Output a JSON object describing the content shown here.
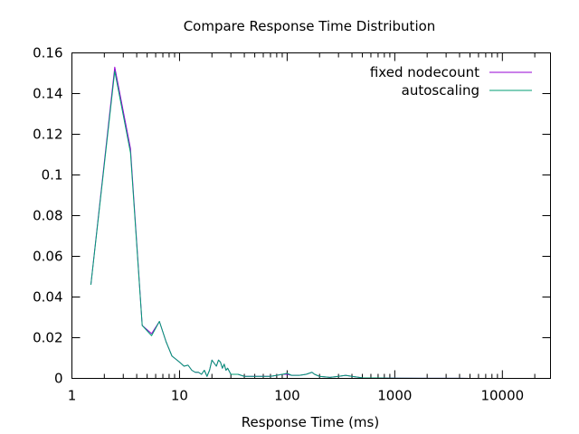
{
  "chart_data": {
    "type": "line",
    "title": "Compare Response Time Distribution",
    "xlabel": "Response Time (ms)",
    "ylabel": "",
    "x_scale": "log",
    "xlim": [
      1,
      28000
    ],
    "ylim": [
      0,
      0.16
    ],
    "x_ticks": [
      1,
      10,
      100,
      1000,
      10000
    ],
    "x_tick_labels": [
      "1",
      "10",
      "100",
      "1000",
      "10000"
    ],
    "y_ticks": [
      0,
      0.02,
      0.04,
      0.06,
      0.08,
      0.1,
      0.12,
      0.14,
      0.16
    ],
    "y_tick_labels": [
      "0",
      "0.02",
      "0.04",
      "0.06",
      "0.08",
      "0.1",
      "0.12",
      "0.14",
      "0.16"
    ],
    "grid": false,
    "legend_position": "top-right",
    "series": [
      {
        "name": "fixed nodecount",
        "color": "#9400d3",
        "points": [
          [
            1.5,
            0.046
          ],
          [
            2.5,
            0.153
          ],
          [
            3.5,
            0.113
          ],
          [
            4.5,
            0.026
          ],
          [
            5.5,
            0.022
          ],
          [
            6.5,
            0.028
          ],
          [
            7.5,
            0.018
          ],
          [
            8.5,
            0.011
          ],
          [
            10,
            0.008
          ],
          [
            11,
            0.006
          ],
          [
            12,
            0.0065
          ],
          [
            13,
            0.004
          ],
          [
            14,
            0.003
          ],
          [
            15,
            0.003
          ],
          [
            16,
            0.002
          ],
          [
            17,
            0.004
          ],
          [
            18,
            0.001
          ],
          [
            19,
            0.004
          ],
          [
            20,
            0.009
          ],
          [
            22,
            0.006
          ],
          [
            23,
            0.009
          ],
          [
            24,
            0.008
          ],
          [
            25,
            0.005
          ],
          [
            26,
            0.007
          ],
          [
            27,
            0.004
          ],
          [
            28,
            0.005
          ],
          [
            30,
            0.002
          ],
          [
            35,
            0.002
          ],
          [
            40,
            0.001
          ],
          [
            50,
            0.001
          ],
          [
            60,
            0.001
          ],
          [
            70,
            0.001
          ],
          [
            80,
            0.0015
          ],
          [
            90,
            0.002
          ],
          [
            100,
            0.002
          ],
          [
            110,
            0.0015
          ],
          [
            130,
            0.0015
          ],
          [
            150,
            0.002
          ],
          [
            170,
            0.003
          ],
          [
            180,
            0.002
          ],
          [
            200,
            0.001
          ],
          [
            250,
            0.0005
          ],
          [
            300,
            0.001
          ],
          [
            350,
            0.0015
          ],
          [
            400,
            0.001
          ],
          [
            500,
            0.0003
          ],
          [
            700,
            0.0002
          ],
          [
            1000,
            0.0001
          ],
          [
            2000,
            5e-05
          ],
          [
            5000,
            2e-05
          ],
          [
            10000,
            1e-05
          ],
          [
            18000,
            1e-05
          ]
        ]
      },
      {
        "name": "autoscaling",
        "color": "#009e73",
        "points": [
          [
            1.5,
            0.046
          ],
          [
            2.5,
            0.151
          ],
          [
            3.5,
            0.111
          ],
          [
            4.5,
            0.026
          ],
          [
            5.5,
            0.021
          ],
          [
            6.5,
            0.028
          ],
          [
            7.5,
            0.018
          ],
          [
            8.5,
            0.011
          ],
          [
            10,
            0.008
          ],
          [
            11,
            0.006
          ],
          [
            12,
            0.0065
          ],
          [
            13,
            0.004
          ],
          [
            14,
            0.003
          ],
          [
            15,
            0.003
          ],
          [
            16,
            0.002
          ],
          [
            17,
            0.004
          ],
          [
            18,
            0.001
          ],
          [
            19,
            0.004
          ],
          [
            20,
            0.009
          ],
          [
            22,
            0.006
          ],
          [
            23,
            0.009
          ],
          [
            24,
            0.008
          ],
          [
            25,
            0.005
          ],
          [
            26,
            0.007
          ],
          [
            27,
            0.004
          ],
          [
            28,
            0.005
          ],
          [
            30,
            0.002
          ],
          [
            35,
            0.002
          ],
          [
            40,
            0.001
          ],
          [
            50,
            0.001
          ],
          [
            60,
            0.001
          ],
          [
            70,
            0.001
          ],
          [
            80,
            0.0015
          ],
          [
            90,
            0.002
          ],
          [
            100,
            0.0025
          ],
          [
            110,
            0.0015
          ],
          [
            130,
            0.0015
          ],
          [
            150,
            0.002
          ],
          [
            170,
            0.003
          ],
          [
            180,
            0.002
          ],
          [
            200,
            0.001
          ],
          [
            250,
            0.0005
          ],
          [
            300,
            0.001
          ],
          [
            350,
            0.0015
          ],
          [
            400,
            0.001
          ],
          [
            500,
            0.0003
          ],
          [
            700,
            0.0002
          ],
          [
            1000,
            0.0001
          ],
          [
            2000,
            5e-05
          ],
          [
            5000,
            2e-05
          ],
          [
            10000,
            1e-05
          ],
          [
            18000,
            1e-05
          ]
        ]
      }
    ]
  }
}
